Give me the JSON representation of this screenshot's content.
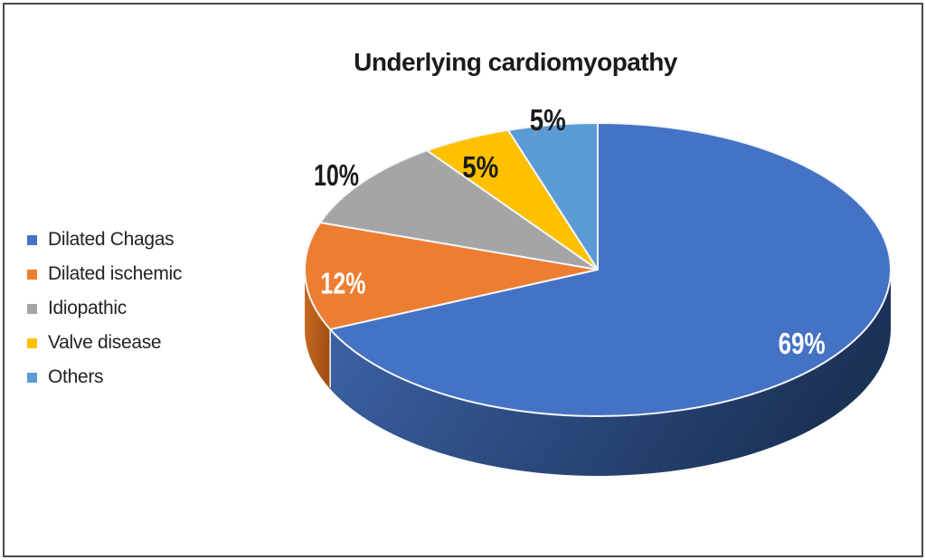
{
  "window": {
    "background": "#ffffff",
    "border_color": "#484848"
  },
  "chart_data": {
    "type": "pie",
    "title": "Underlying cardiomyopathy",
    "effect": "3d",
    "direction": "clockwise",
    "start_angle_deg": 0,
    "legend_position": "left",
    "unit": "%",
    "slices": [
      {
        "label": "Dilated Chagas",
        "value": 69,
        "display": "69%",
        "color": "#4472C4",
        "side_top": "#3E64A9",
        "side_bottom": "#1B3257",
        "label_color": "#FFFFFF",
        "label_placement": "inside"
      },
      {
        "label": "Dilated ischemic",
        "value": 12,
        "display": "12%",
        "color": "#ED7D31",
        "side_top": "#CC6B22",
        "side_bottom": "#A35013",
        "label_color": "#FFFFFF",
        "label_placement": "inside"
      },
      {
        "label": "Idiopathic",
        "value": 10,
        "display": "10%",
        "color": "#A5A5A5",
        "side_top": "#8C8C8C",
        "side_bottom": "#6E6E6E",
        "label_color": "#1B1B1B",
        "label_placement": "outside"
      },
      {
        "label": "Valve disease",
        "value": 5,
        "display": "5%",
        "color": "#FFC000",
        "side_top": "#D7A100",
        "side_bottom": "#A87C00",
        "label_color": "#1B1B1B",
        "label_placement": "inside"
      },
      {
        "label": "Others",
        "value": 5,
        "display": "5%",
        "color": "#5B9BD5",
        "side_top": "#4A82B8",
        "side_bottom": "#35618C",
        "label_color": "#1B1B1B",
        "label_placement": "outside-leader"
      }
    ]
  }
}
